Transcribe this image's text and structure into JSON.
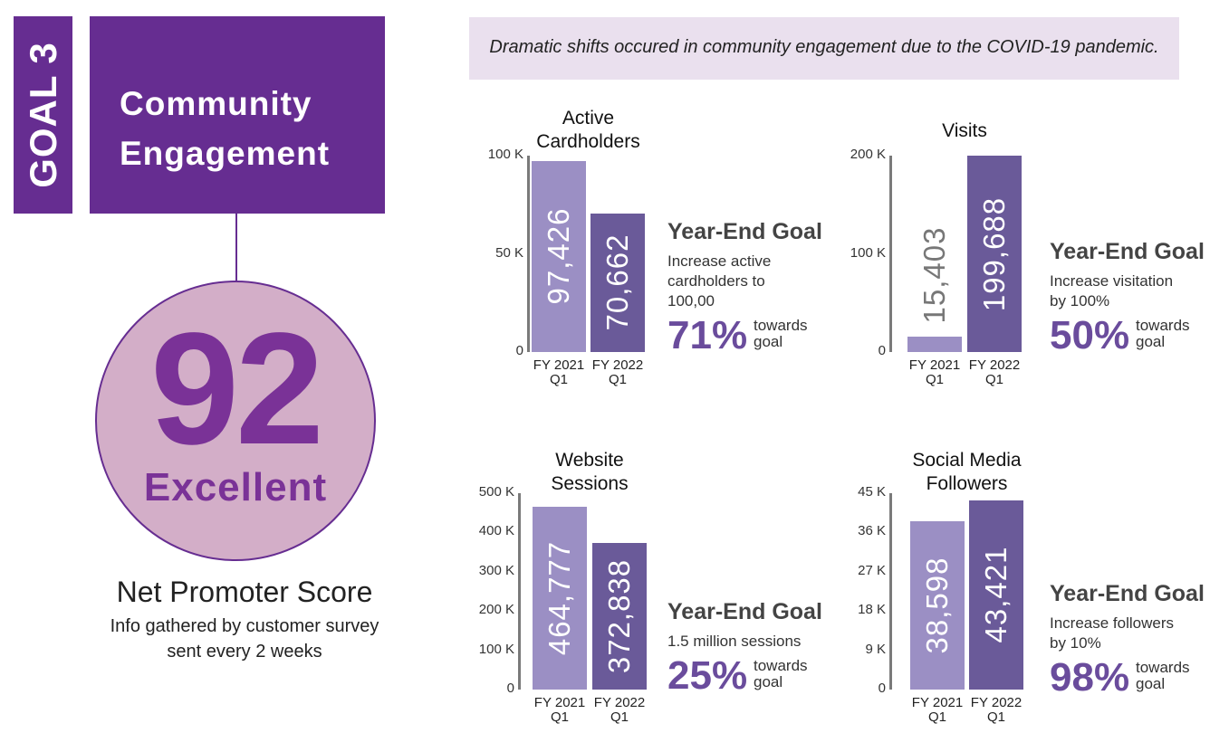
{
  "goal_label": "GOAL 3",
  "title": {
    "line1": "Community",
    "line2": "Engagement"
  },
  "nps": {
    "score": "92",
    "rating": "Excellent",
    "label": "Net Promoter Score",
    "note_line1": "Info gathered by customer survey",
    "note_line2": "sent every 2 weeks"
  },
  "headline": "Dramatic shifts occured in community engagement due to the COVID-19 pandemic.",
  "colors": {
    "purple": "#662d91",
    "bar_light": "#9b8fc4",
    "bar_dark": "#6a5a99",
    "circle": "#d3aec8",
    "headline_bg": "#eae0ee"
  },
  "chart_data": [
    {
      "type": "bar",
      "title_line1": "Active",
      "title_line2": "Cardholders",
      "categories": [
        [
          "FY 2021",
          "Q1"
        ],
        [
          "FY 2022",
          "Q1"
        ]
      ],
      "values": [
        97426,
        70662
      ],
      "value_labels": [
        "97,426",
        "70,662"
      ],
      "ylim": [
        0,
        100000
      ],
      "yticks": [
        "100 K",
        "50 K",
        "0"
      ],
      "goal": {
        "heading": "Year-End Goal",
        "desc_lines": [
          "Increase active",
          "cardholders to",
          "100,00"
        ],
        "percent": "71%",
        "towards1": "towards",
        "towards2": "goal"
      }
    },
    {
      "type": "bar",
      "title_line1": "Visits",
      "title_line2": "",
      "categories": [
        [
          "FY 2021",
          "Q1"
        ],
        [
          "FY 2022",
          "Q1"
        ]
      ],
      "values": [
        15403,
        199688
      ],
      "value_labels": [
        "15,403",
        "199,688"
      ],
      "ylim": [
        0,
        200000
      ],
      "yticks": [
        "200 K",
        "100 K",
        "0"
      ],
      "goal": {
        "heading": "Year-End Goal",
        "desc_lines": [
          "Increase visitation",
          "by 100%"
        ],
        "percent": "50%",
        "towards1": "towards",
        "towards2": "goal"
      }
    },
    {
      "type": "bar",
      "title_line1": "Website",
      "title_line2": "Sessions",
      "categories": [
        [
          "FY 2021",
          "Q1"
        ],
        [
          "FY 2022",
          "Q1"
        ]
      ],
      "values": [
        464777,
        372838
      ],
      "value_labels": [
        "464,777",
        "372,838"
      ],
      "ylim": [
        0,
        500000
      ],
      "yticks": [
        "500 K",
        "400 K",
        "300 K",
        "200 K",
        "100 K",
        "0"
      ],
      "goal": {
        "heading": "Year-End Goal",
        "desc_lines": [
          "1.5 million sessions"
        ],
        "percent": "25%",
        "towards1": "towards",
        "towards2": "goal"
      }
    },
    {
      "type": "bar",
      "title_line1": "Social Media",
      "title_line2": "Followers",
      "categories": [
        [
          "FY 2021",
          "Q1"
        ],
        [
          "FY 2022",
          "Q1"
        ]
      ],
      "values": [
        38598,
        43421
      ],
      "value_labels": [
        "38,598",
        "43,421"
      ],
      "ylim": [
        0,
        45000
      ],
      "yticks": [
        "45 K",
        "36 K",
        "27 K",
        "18 K",
        "9 K",
        "0"
      ],
      "goal": {
        "heading": "Year-End Goal",
        "desc_lines": [
          "Increase followers",
          "by 10%"
        ],
        "percent": "98%",
        "towards1": "towards",
        "towards2": "goal"
      }
    }
  ]
}
